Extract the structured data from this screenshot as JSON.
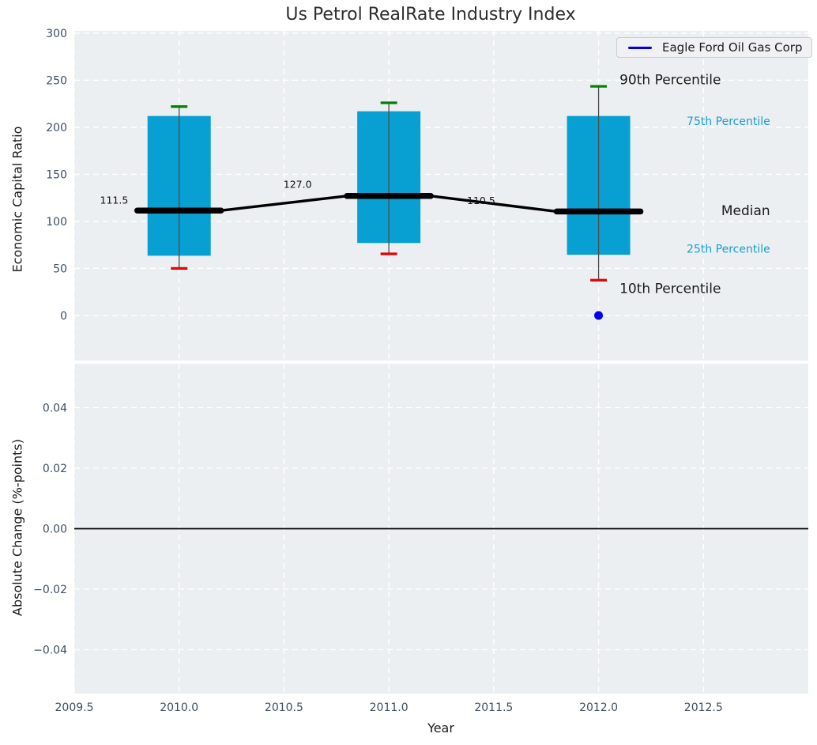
{
  "chart_data": {
    "type": "boxplot",
    "title": "Us Petrol RealRate Industry Index",
    "xlabel": "Year",
    "legend": {
      "label": "Eagle Ford Oil Gas Corp",
      "line_color": "#0000ee"
    },
    "x_axis": {
      "lim": [
        2009.5,
        2013.0
      ],
      "tick_values": [
        2009.5,
        2010.0,
        2010.5,
        2011.0,
        2011.5,
        2012.0,
        2012.5
      ],
      "tick_labels": [
        "2009.5",
        "2010.0",
        "2010.5",
        "2011.0",
        "2011.5",
        "2012.0",
        "2012.5"
      ]
    },
    "top_panel": {
      "ylabel": "Economic Capital Ratio",
      "ylim": [
        -48,
        302.5
      ],
      "tick_values": [
        0,
        50,
        100,
        150,
        200,
        250,
        300
      ],
      "tick_labels": [
        "0",
        "50",
        "100",
        "150",
        "200",
        "250",
        "300"
      ],
      "boxes": [
        {
          "year": 2010,
          "p10": 50,
          "p25": 63.5,
          "median": 111.5,
          "p75": 212,
          "p90": 222,
          "median_label": "111.5",
          "label_x": 2009.69,
          "label_y": 122.5
        },
        {
          "year": 2011,
          "p10": 65.5,
          "p25": 77,
          "median": 127.0,
          "p75": 217,
          "p90": 226,
          "median_label": "127.0",
          "label_x": 2010.565,
          "label_y": 139.5
        },
        {
          "year": 2012,
          "p10": 37.5,
          "p25": 64.5,
          "median": 110.5,
          "p75": 212,
          "p90": 243.5,
          "median_label": "110.5",
          "label_x": 2011.44,
          "label_y": 122
        }
      ],
      "company_point": {
        "year": 2012,
        "value": 0
      },
      "annotations": [
        {
          "text": "90th Percentile",
          "x": 2012.1,
          "y": 251,
          "variant": "major"
        },
        {
          "text": "75th Percentile",
          "x": 2012.42,
          "y": 206.5,
          "variant": "minor"
        },
        {
          "text": "Median",
          "x": 2012.585,
          "y": 111.5,
          "variant": "major"
        },
        {
          "text": "25th Percentile",
          "x": 2012.42,
          "y": 71,
          "variant": "minor"
        },
        {
          "text": "10th Percentile",
          "x": 2012.1,
          "y": 29,
          "variant": "major"
        }
      ]
    },
    "bottom_panel": {
      "ylabel": "Absolute Change (%-points)",
      "ylim": [
        -0.0545,
        0.0545
      ],
      "tick_values": [
        0.04,
        0.02,
        0,
        -0.02,
        -0.04
      ],
      "tick_labels": [
        "0.04",
        "0.02",
        "0.00",
        "−0.02",
        "−0.04"
      ],
      "zero_line": 0.0
    },
    "style": {
      "panel_bg": "#eceff1",
      "grid_color": "#ffffff",
      "box_fill": "#089fd2",
      "whisker_color": "#4d4d4d",
      "cap_high_color": "#008000",
      "cap_low_color": "#e60000",
      "median_color": "#000000",
      "company_color": "#0000ee",
      "tick_label_color": "#3f4e63",
      "minor_annotation_color": "#1b9cd3",
      "major_annotation_color": "#1a1a1a"
    }
  }
}
